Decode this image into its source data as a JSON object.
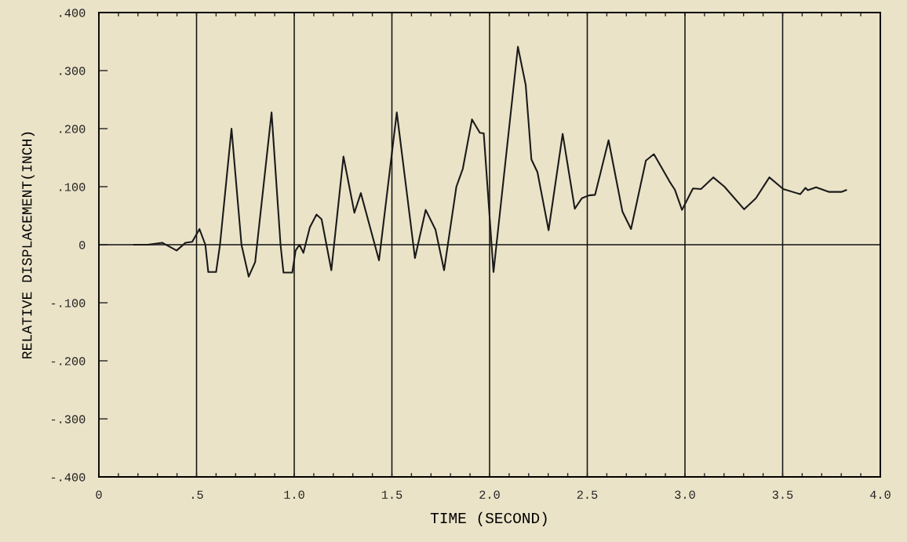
{
  "chart_data": {
    "type": "line",
    "xlabel": "TIME (SECOND)",
    "ylabel": "RELATIVE DISPLACEMENT(INCH)",
    "x": [
      0.18,
      0.25,
      0.324,
      0.398,
      0.444,
      0.478,
      0.515,
      0.545,
      0.56,
      0.6,
      0.62,
      0.679,
      0.73,
      0.767,
      0.8,
      0.884,
      0.93,
      0.945,
      0.99,
      1.007,
      1.027,
      1.047,
      1.08,
      1.114,
      1.14,
      1.19,
      1.252,
      1.308,
      1.341,
      1.434,
      1.525,
      1.618,
      1.673,
      1.723,
      1.767,
      1.83,
      1.863,
      1.91,
      1.95,
      1.97,
      2.02,
      2.145,
      2.185,
      2.214,
      2.245,
      2.302,
      2.374,
      2.436,
      2.472,
      2.508,
      2.54,
      2.609,
      2.68,
      2.724,
      2.8,
      2.841,
      2.921,
      2.948,
      2.985,
      3.041,
      3.082,
      3.145,
      3.202,
      3.303,
      3.363,
      3.432,
      3.503,
      3.59,
      3.617,
      3.629,
      3.671,
      3.738,
      3.8,
      3.825
    ],
    "series": [
      {
        "color": "#1a1a1a",
        "values": [
          0.0,
          0.0,
          0.0035,
          -0.01,
          0.0035,
          0.005,
          0.027,
          0.0,
          -0.047,
          -0.047,
          0.0,
          0.2,
          0.0,
          -0.055,
          -0.03,
          0.228,
          0.0,
          -0.048,
          -0.048,
          -0.01,
          0.0,
          -0.014,
          0.03,
          0.052,
          0.044,
          -0.044,
          0.152,
          0.055,
          0.089,
          -0.027,
          0.228,
          -0.023,
          0.06,
          0.026,
          -0.044,
          0.1,
          0.131,
          0.216,
          0.193,
          0.192,
          -0.047,
          0.341,
          0.275,
          0.147,
          0.125,
          0.025,
          0.191,
          0.062,
          0.08,
          0.085,
          0.086,
          0.18,
          0.057,
          0.027,
          0.145,
          0.156,
          0.109,
          0.095,
          0.06,
          0.097,
          0.096,
          0.116,
          0.1,
          0.061,
          0.08,
          0.116,
          0.096,
          0.087,
          0.098,
          0.094,
          0.099,
          0.091,
          0.091,
          0.094
        ]
      }
    ],
    "xlim": [
      0,
      4.0
    ],
    "ylim": [
      -0.4,
      0.4
    ],
    "xticks": [
      0,
      {
        "value": 0.1,
        "label": null
      },
      {
        "value": 0.2,
        "label": null
      },
      {
        "value": 0.3,
        "label": null
      },
      {
        "value": 0.4,
        "label": null
      },
      {
        "value": 0.5,
        "label": ".5"
      },
      {
        "value": 0.6,
        "label": null
      },
      {
        "value": 0.7,
        "label": null
      },
      {
        "value": 0.8,
        "label": null
      },
      {
        "value": 0.9,
        "label": null
      },
      {
        "value": 1.0,
        "label": "1.0"
      },
      {
        "value": 1.1,
        "label": null
      },
      {
        "value": 1.2,
        "label": null
      },
      {
        "value": 1.3,
        "label": null
      },
      {
        "value": 1.4,
        "label": null
      },
      {
        "value": 1.5,
        "label": "1.5"
      },
      {
        "value": 1.6,
        "label": null
      },
      {
        "value": 1.7,
        "label": null
      },
      {
        "value": 1.8,
        "label": null
      },
      {
        "value": 1.9,
        "label": null
      },
      {
        "value": 2.0,
        "label": "2.0"
      },
      {
        "value": 2.1,
        "label": null
      },
      {
        "value": 2.2,
        "label": null
      },
      {
        "value": 2.3,
        "label": null
      },
      {
        "value": 2.4,
        "label": null
      },
      {
        "value": 2.5,
        "label": "2.5"
      },
      {
        "value": 2.6,
        "label": null
      },
      {
        "value": 2.7,
        "label": null
      },
      {
        "value": 2.8,
        "label": null
      },
      {
        "value": 2.9,
        "label": null
      },
      {
        "value": 3.0,
        "label": "3.0"
      },
      {
        "value": 3.1,
        "label": null
      },
      {
        "value": 3.2,
        "label": null
      },
      {
        "value": 3.3,
        "label": null
      },
      {
        "value": 3.4,
        "label": null
      },
      {
        "value": 3.5,
        "label": "3.5"
      },
      {
        "value": 3.6,
        "label": null
      },
      {
        "value": 3.7,
        "label": null
      },
      {
        "value": 3.8,
        "label": null
      },
      {
        "value": 3.9,
        "label": null
      },
      {
        "value": 4.0,
        "label": "4.0"
      }
    ],
    "yticks": [
      {
        "value": -0.4,
        "label": "-.400"
      },
      {
        "value": -0.3,
        "label": "-.300"
      },
      {
        "value": -0.2,
        "label": "-.200"
      },
      {
        "value": -0.1,
        "label": "-.100"
      },
      0,
      {
        "value": 0.1,
        "label": ".100"
      },
      {
        "value": 0.2,
        "label": ".200"
      },
      {
        "value": 0.3,
        "label": ".300"
      },
      {
        "value": 0.4,
        "label": ".400"
      }
    ],
    "grid": "x",
    "ref_lines": [
      {
        "axis": "y",
        "value": 0
      }
    ],
    "line_style": "solid",
    "marker": "none",
    "legend": false
  }
}
